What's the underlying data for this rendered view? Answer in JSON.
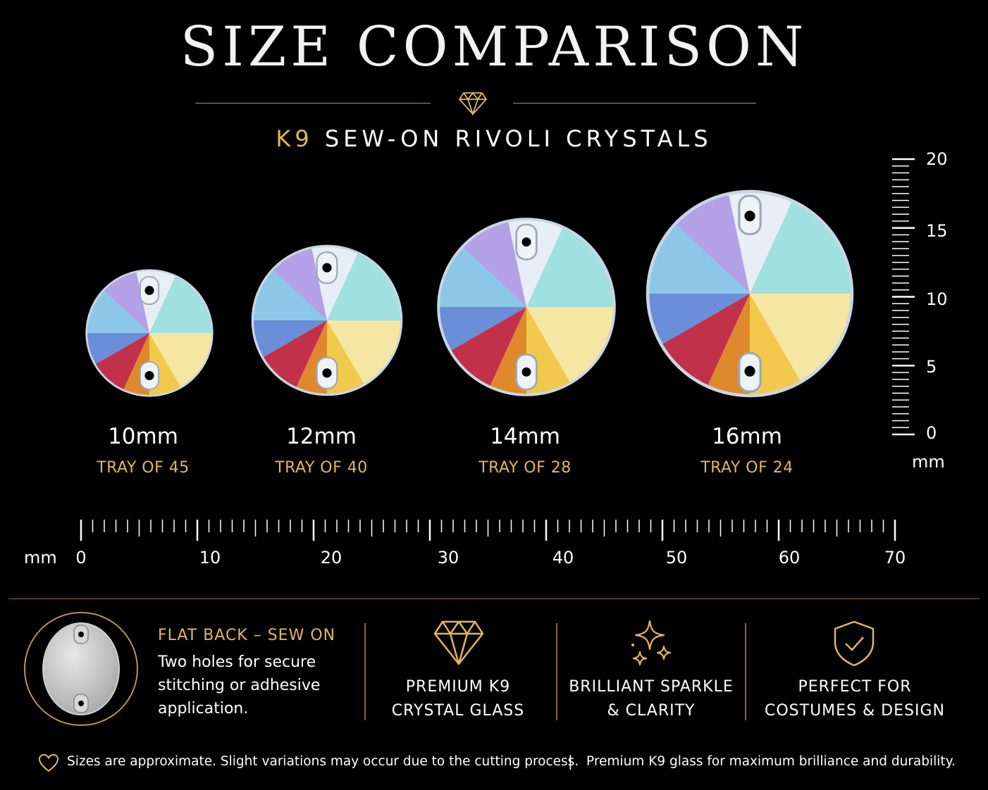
{
  "header": {
    "title": "SIZE COMPARISON",
    "subtitle_accent": "K9",
    "subtitle_rest": "SEW-ON RIVOLI CRYSTALS"
  },
  "crystals": [
    {
      "size": "10mm",
      "tray": "TRAY OF 45"
    },
    {
      "size": "12mm",
      "tray": "TRAY OF 40"
    },
    {
      "size": "14mm",
      "tray": "TRAY OF 28"
    },
    {
      "size": "16mm",
      "tray": "TRAY OF 24"
    }
  ],
  "horizontal_ruler": {
    "unit": "mm",
    "labels": [
      "0",
      "10",
      "20",
      "30",
      "40",
      "50",
      "60",
      "70"
    ]
  },
  "vertical_ruler": {
    "unit": "mm",
    "labels": [
      "20",
      "15",
      "10",
      "5",
      "0"
    ]
  },
  "features": {
    "flatback_title": "FLAT BACK – SEW ON",
    "flatback_line1": "Two holes for secure",
    "flatback_line2": "stitching or adhesive",
    "flatback_line3": "application.",
    "premium_line1": "PREMIUM K9",
    "premium_line2": "CRYSTAL GLASS",
    "sparkle_line1": "BRILLIANT SPARKLE",
    "sparkle_line2": "& CLARITY",
    "perfect_line1": "PERFECT FOR",
    "perfect_line2": "COSTUMES & DESIGN"
  },
  "footer": {
    "note_left": "Sizes are approximate. Slight variations may occur due to the cutting process.",
    "separator": "|",
    "note_right": "Premium K9 glass for maximum brilliance and durability."
  },
  "colors": {
    "gold": "#e2b65a",
    "rule_gold": "#b8954a",
    "background": "#000000"
  },
  "icons": [
    "diamond-icon",
    "sparkle-icon",
    "shield-check-icon",
    "heart-icon"
  ]
}
